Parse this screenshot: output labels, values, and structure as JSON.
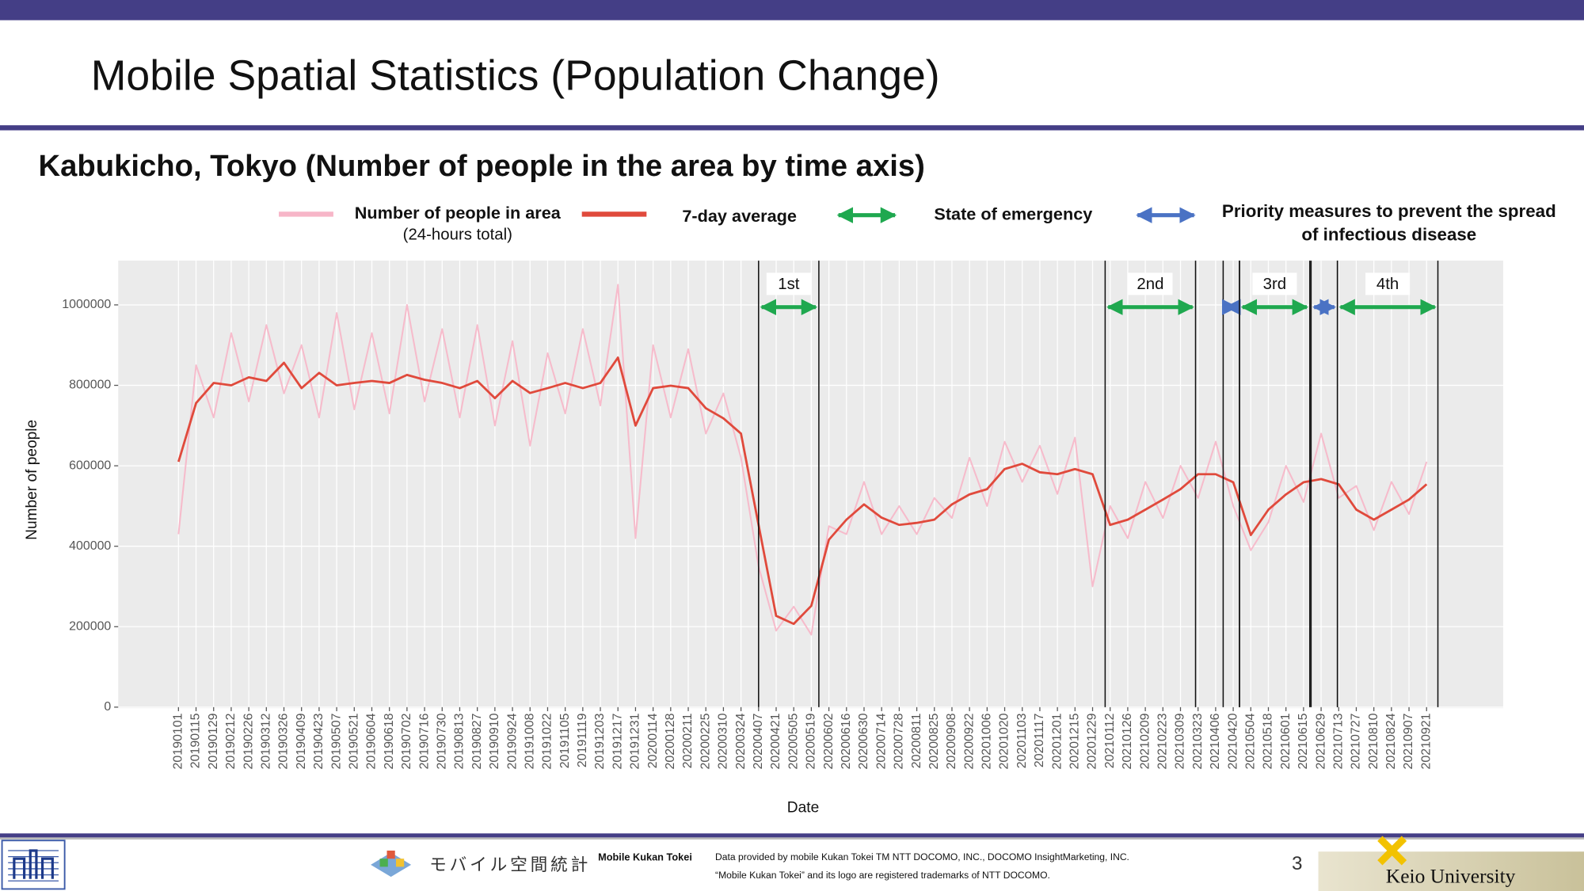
{
  "title": "Mobile Spatial Statistics (Population Change)",
  "subtitle": "Kabukicho, Tokyo (Number of people in the area by time axis)",
  "footer": {
    "logo_text": "モバイル空間統計",
    "brand": "Mobile Kukan Tokei",
    "credit": "Data provided by mobile Kukan Tokei TM NTT DOCOMO, INC., DOCOMO InsightMarketing, INC.",
    "trademark": "“Mobile Kukan Tokei” and its logo are registered trademarks of NTT DOCOMO.",
    "page": 3,
    "university": "Keio University"
  },
  "chart_data": {
    "type": "line",
    "xlabel": "Date",
    "ylabel": "Number of people",
    "x": [
      "20190101",
      "20190115",
      "20190129",
      "20190212",
      "20190226",
      "20190312",
      "20190326",
      "20190409",
      "20190423",
      "20190507",
      "20190521",
      "20190604",
      "20190618",
      "20190702",
      "20190716",
      "20190730",
      "20190813",
      "20190827",
      "20190910",
      "20190924",
      "20191008",
      "20191022",
      "20191105",
      "20191119",
      "20191203",
      "20191217",
      "20191231",
      "20200114",
      "20200128",
      "20200211",
      "20200225",
      "20200310",
      "20200324",
      "20200407",
      "20200421",
      "20200505",
      "20200519",
      "20200602",
      "20200616",
      "20200630",
      "20200714",
      "20200728",
      "20200811",
      "20200825",
      "20200908",
      "20200922",
      "20201006",
      "20201020",
      "20201103",
      "20201117",
      "20201201",
      "20201215",
      "20201229",
      "20210112",
      "20210126",
      "20210209",
      "20210223",
      "20210309",
      "20210323",
      "20210406",
      "20210420",
      "20210504",
      "20210518",
      "20210601",
      "20210615",
      "20210629",
      "20210713",
      "20210727",
      "20210810",
      "20210824",
      "20210907",
      "20210921"
    ],
    "xlim": [
      "20181114",
      "20211121"
    ],
    "ylim": [
      0,
      1110000
    ],
    "yticks": [
      0,
      200000,
      400000,
      600000,
      800000,
      1000000
    ],
    "grid": true,
    "series": [
      {
        "name": "Number of people in area",
        "note": "(24-hours total)",
        "color": "#f7b6c8",
        "values": [
          430000,
          850000,
          720000,
          930000,
          760000,
          950000,
          780000,
          900000,
          720000,
          980000,
          740000,
          930000,
          730000,
          1000000,
          760000,
          940000,
          720000,
          950000,
          700000,
          910000,
          650000,
          880000,
          730000,
          940000,
          750000,
          1050000,
          420000,
          900000,
          720000,
          890000,
          680000,
          780000,
          620000,
          350000,
          190000,
          250000,
          180000,
          450000,
          430000,
          560000,
          430000,
          500000,
          430000,
          520000,
          470000,
          620000,
          500000,
          660000,
          560000,
          650000,
          530000,
          670000,
          300000,
          500000,
          420000,
          560000,
          470000,
          600000,
          520000,
          660000,
          500000,
          390000,
          460000,
          600000,
          510000,
          680000,
          520000,
          550000,
          440000,
          560000,
          480000,
          610000
        ]
      },
      {
        "name": "7-day average",
        "color": "#e04a3c",
        "values": [
          610000,
          756000,
          806000,
          800000,
          820000,
          811000,
          856000,
          793000,
          831000,
          800000,
          806000,
          811000,
          806000,
          826000,
          814000,
          806000,
          793000,
          811000,
          768000,
          811000,
          781000,
          793000,
          806000,
          793000,
          806000,
          869000,
          700000,
          793000,
          799000,
          793000,
          743000,
          718000,
          680000,
          453000,
          227000,
          207000,
          252000,
          416000,
          466000,
          504000,
          471000,
          453000,
          458000,
          466000,
          504000,
          529000,
          542000,
          592000,
          605000,
          584000,
          579000,
          592000,
          579000,
          453000,
          466000,
          491000,
          516000,
          542000,
          579000,
          579000,
          559000,
          428000,
          491000,
          529000,
          559000,
          567000,
          554000,
          491000,
          466000,
          491000,
          516000,
          554000
        ]
      }
    ],
    "period_types": [
      {
        "name": "State of emergency",
        "color": "#1fa84f"
      },
      {
        "name": "Priority measures to prevent the spread of infectious disease",
        "color": "#4a72c4"
      }
    ],
    "periods": [
      {
        "type": 0,
        "label": "1st",
        "start": "20200407",
        "end": "20200525"
      },
      {
        "type": 0,
        "label": "2nd",
        "start": "20210108",
        "end": "20210321"
      },
      {
        "type": 1,
        "start": "20210412",
        "end": "20210425"
      },
      {
        "type": 0,
        "label": "3rd",
        "start": "20210425",
        "end": "20210620"
      },
      {
        "type": 1,
        "start": "20210621",
        "end": "20210712"
      },
      {
        "type": 0,
        "label": "4th",
        "start": "20210712",
        "end": "20210930"
      }
    ]
  }
}
